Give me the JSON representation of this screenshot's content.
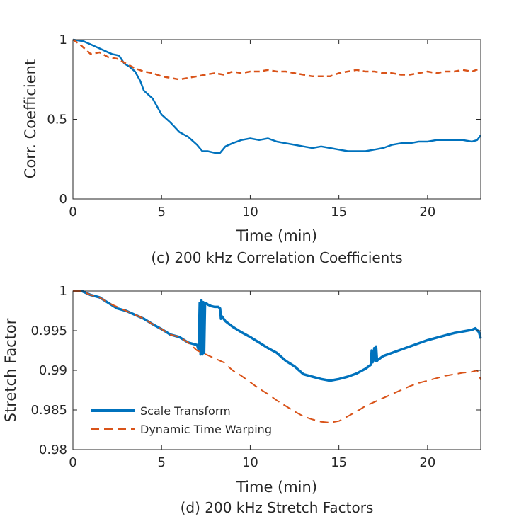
{
  "colors": {
    "blue": "#0072BD",
    "orange": "#D95319",
    "axis": "#262626"
  },
  "chart_data": [
    {
      "type": "line",
      "caption": "(c) 200 kHz Correlation Coefficients",
      "xlabel": "Time (min)",
      "ylabel": "Corr. Coefficient",
      "xlim": [
        0,
        23
      ],
      "ylim": [
        0,
        1
      ],
      "xticks": [
        0,
        5,
        10,
        15,
        20
      ],
      "yticks": [
        0,
        0.5,
        1
      ],
      "xtick_labels": [
        "0",
        "5",
        "10",
        "15",
        "20"
      ],
      "ytick_labels": [
        "0",
        "0.5",
        "1"
      ],
      "grid": false,
      "series": [
        {
          "color": "#0072BD",
          "style": "solid",
          "x": [
            0,
            0.6,
            1.2,
            1.8,
            2.2,
            2.6,
            2.9,
            3.2,
            3.5,
            3.8,
            4.0,
            4.5,
            5.0,
            5.5,
            6.0,
            6.5,
            7.0,
            7.3,
            7.6,
            8.0,
            8.3,
            8.6,
            9.0,
            9.5,
            10.0,
            10.5,
            11.0,
            11.5,
            12.0,
            12.5,
            13.0,
            13.5,
            14.0,
            14.5,
            15.0,
            15.5,
            16.0,
            16.5,
            17.0,
            17.5,
            18.0,
            18.5,
            19.0,
            19.5,
            20.0,
            20.5,
            21.0,
            21.5,
            22.0,
            22.5,
            22.8,
            23.0
          ],
          "y": [
            1.0,
            0.99,
            0.96,
            0.93,
            0.91,
            0.9,
            0.85,
            0.83,
            0.8,
            0.74,
            0.68,
            0.63,
            0.53,
            0.48,
            0.42,
            0.39,
            0.34,
            0.3,
            0.3,
            0.29,
            0.29,
            0.33,
            0.35,
            0.37,
            0.38,
            0.37,
            0.38,
            0.36,
            0.35,
            0.34,
            0.33,
            0.32,
            0.33,
            0.32,
            0.31,
            0.3,
            0.3,
            0.3,
            0.31,
            0.32,
            0.34,
            0.35,
            0.35,
            0.36,
            0.36,
            0.37,
            0.37,
            0.37,
            0.37,
            0.36,
            0.37,
            0.4
          ]
        },
        {
          "color": "#D95319",
          "style": "dashed",
          "x": [
            0,
            0.4,
            0.8,
            1.0,
            1.5,
            2.0,
            2.5,
            3.0,
            3.5,
            4.0,
            4.5,
            5.0,
            5.5,
            6.0,
            6.5,
            7.0,
            7.5,
            8.0,
            8.5,
            9.0,
            9.5,
            10.0,
            10.5,
            11.0,
            11.5,
            12.0,
            12.5,
            13.0,
            13.5,
            14.0,
            14.5,
            15.0,
            15.5,
            16.0,
            16.5,
            17.0,
            17.5,
            18.0,
            18.5,
            19.0,
            19.5,
            20.0,
            20.5,
            21.0,
            21.5,
            22.0,
            22.5,
            23.0
          ],
          "y": [
            1.0,
            0.97,
            0.93,
            0.91,
            0.92,
            0.89,
            0.88,
            0.85,
            0.82,
            0.8,
            0.79,
            0.77,
            0.76,
            0.75,
            0.76,
            0.77,
            0.78,
            0.79,
            0.78,
            0.8,
            0.79,
            0.8,
            0.8,
            0.81,
            0.8,
            0.8,
            0.79,
            0.78,
            0.77,
            0.77,
            0.77,
            0.79,
            0.8,
            0.81,
            0.8,
            0.8,
            0.79,
            0.79,
            0.78,
            0.78,
            0.79,
            0.8,
            0.79,
            0.8,
            0.8,
            0.81,
            0.8,
            0.82
          ]
        }
      ]
    },
    {
      "type": "line",
      "caption": "(d) 200 kHz Stretch Factors",
      "xlabel": "Time (min)",
      "ylabel": "Stretch Factor",
      "xlim": [
        0,
        23
      ],
      "ylim": [
        0.98,
        1
      ],
      "xticks": [
        0,
        5,
        10,
        15,
        20
      ],
      "yticks": [
        0.98,
        0.985,
        0.99,
        0.995,
        1
      ],
      "xtick_labels": [
        "0",
        "5",
        "10",
        "15",
        "20"
      ],
      "ytick_labels": [
        "0.98",
        "0.985",
        "0.99",
        "0.995",
        "1"
      ],
      "grid": false,
      "legend": {
        "placement": "bottom-left",
        "entries": [
          "Scale Transform",
          "Dynamic Time Warping"
        ]
      },
      "series": [
        {
          "name": "Scale Transform",
          "color": "#0072BD",
          "style": "solid",
          "x": [
            0,
            0.5,
            1.0,
            1.5,
            2.0,
            2.5,
            3.0,
            3.5,
            4.0,
            4.5,
            5.0,
            5.5,
            6.0,
            6.5,
            7.0,
            7.1,
            7.15,
            7.2,
            7.25,
            7.3,
            7.35,
            7.4,
            7.45,
            7.5,
            7.6,
            7.8,
            8.0,
            8.2,
            8.3,
            8.35,
            8.4,
            8.6,
            9.0,
            9.5,
            10.0,
            10.5,
            11.0,
            11.5,
            12.0,
            12.5,
            13.0,
            13.5,
            14.0,
            14.5,
            15.0,
            15.5,
            16.0,
            16.5,
            16.8,
            16.85,
            16.9,
            17.0,
            17.05,
            17.1,
            17.15,
            17.2,
            17.5,
            18.0,
            18.5,
            19.0,
            19.5,
            20.0,
            20.5,
            21.0,
            21.5,
            22.0,
            22.5,
            22.7,
            22.9,
            23.0
          ],
          "y": [
            1.0,
            1.0,
            0.9995,
            0.9992,
            0.9985,
            0.9978,
            0.9975,
            0.997,
            0.9965,
            0.9958,
            0.9952,
            0.9945,
            0.9942,
            0.9935,
            0.9932,
            0.9925,
            0.9985,
            0.992,
            0.9988,
            0.992,
            0.9986,
            0.9922,
            0.9985,
            0.9985,
            0.9983,
            0.9981,
            0.998,
            0.998,
            0.9978,
            0.9965,
            0.9968,
            0.9962,
            0.9955,
            0.9948,
            0.9942,
            0.9935,
            0.9928,
            0.9922,
            0.9912,
            0.9905,
            0.9895,
            0.9892,
            0.9889,
            0.9887,
            0.9889,
            0.9892,
            0.9896,
            0.9902,
            0.9907,
            0.9925,
            0.991,
            0.9928,
            0.9912,
            0.993,
            0.9912,
            0.9913,
            0.9918,
            0.9922,
            0.9926,
            0.993,
            0.9934,
            0.9938,
            0.9941,
            0.9944,
            0.9947,
            0.9949,
            0.9951,
            0.9953,
            0.9948,
            0.994
          ]
        },
        {
          "name": "Dynamic Time Warping",
          "color": "#D95319",
          "style": "dashed",
          "x": [
            0,
            0.5,
            1.0,
            1.5,
            2.0,
            2.5,
            3.0,
            3.5,
            4.0,
            4.5,
            5.0,
            5.5,
            6.0,
            6.5,
            7.0,
            7.5,
            8.0,
            8.5,
            9.0,
            9.5,
            10.0,
            10.5,
            11.0,
            11.5,
            12.0,
            12.5,
            13.0,
            13.5,
            14.0,
            14.5,
            15.0,
            15.5,
            16.0,
            16.5,
            17.0,
            17.5,
            18.0,
            18.5,
            19.0,
            19.5,
            20.0,
            20.5,
            21.0,
            21.5,
            22.0,
            22.5,
            22.8,
            23.0
          ],
          "y": [
            1.0,
            1.0,
            0.9995,
            0.9992,
            0.9985,
            0.998,
            0.9975,
            0.997,
            0.9965,
            0.9958,
            0.9952,
            0.9945,
            0.9942,
            0.9935,
            0.9925,
            0.992,
            0.9915,
            0.991,
            0.99,
            0.9893,
            0.9885,
            0.9877,
            0.987,
            0.9862,
            0.9855,
            0.9848,
            0.9842,
            0.9838,
            0.9835,
            0.9834,
            0.9836,
            0.9842,
            0.9848,
            0.9855,
            0.986,
            0.9865,
            0.987,
            0.9875,
            0.988,
            0.9884,
            0.9887,
            0.989,
            0.9893,
            0.9895,
            0.9897,
            0.9898,
            0.99,
            0.9888
          ]
        }
      ]
    }
  ]
}
